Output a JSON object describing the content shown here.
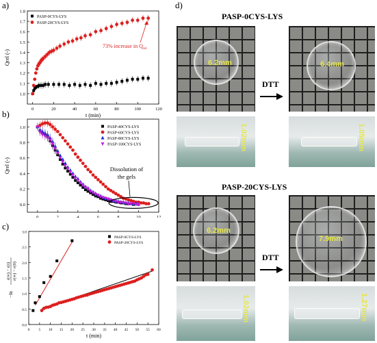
{
  "panel_letters": {
    "a": "a)",
    "b": "b)",
    "c": "c)",
    "d": "d)"
  },
  "chart_data": [
    {
      "id": "a",
      "type": "scatter",
      "xlabel": "t (min)",
      "ylabel": "Qrel (-)",
      "xlim": [
        -5,
        120
      ],
      "ylim": [
        0.9,
        1.8
      ],
      "xticks": [
        0,
        20,
        40,
        60,
        80,
        100,
        120
      ],
      "yticks": [
        1.0,
        1.1,
        1.2,
        1.3,
        1.4,
        1.5,
        1.6,
        1.7,
        1.8
      ],
      "annotation": "73% increase in Q",
      "annotation_sub": "rel",
      "legend": "top-left",
      "series": [
        {
          "name": "PASP-0CYS-LYS",
          "color": "#000000",
          "marker": "square",
          "x": [
            0,
            1,
            2,
            3,
            4,
            5,
            6,
            8,
            10,
            12,
            15,
            20,
            25,
            30,
            35,
            40,
            45,
            50,
            55,
            60,
            65,
            70,
            75,
            80,
            85,
            90,
            95,
            100,
            105,
            110
          ],
          "y": [
            1.0,
            1.03,
            1.05,
            1.06,
            1.07,
            1.07,
            1.08,
            1.08,
            1.08,
            1.09,
            1.09,
            1.09,
            1.09,
            1.09,
            1.08,
            1.09,
            1.08,
            1.09,
            1.08,
            1.1,
            1.09,
            1.1,
            1.1,
            1.11,
            1.12,
            1.13,
            1.14,
            1.14,
            1.15,
            1.15
          ]
        },
        {
          "name": "PASP-20CYS-LYS",
          "color": "#dd1f1f",
          "marker": "circle",
          "x": [
            0,
            1,
            2,
            3,
            4,
            5,
            6,
            7,
            8,
            9,
            10,
            12,
            14,
            16,
            18,
            20,
            23,
            26,
            30,
            34,
            38,
            42,
            46,
            50,
            55,
            60,
            65,
            70,
            75,
            80,
            85,
            90,
            95,
            100,
            105,
            110
          ],
          "y": [
            1.0,
            1.08,
            1.14,
            1.2,
            1.24,
            1.27,
            1.29,
            1.3,
            1.32,
            1.33,
            1.34,
            1.36,
            1.38,
            1.4,
            1.41,
            1.42,
            1.44,
            1.46,
            1.48,
            1.5,
            1.51,
            1.53,
            1.54,
            1.56,
            1.57,
            1.6,
            1.61,
            1.63,
            1.65,
            1.67,
            1.68,
            1.69,
            1.71,
            1.71,
            1.73,
            1.73
          ]
        }
      ]
    },
    {
      "id": "b",
      "type": "scatter",
      "xlabel": "",
      "ylabel": "Qrel (-)",
      "xlim": [
        -1,
        12
      ],
      "ylim": [
        -0.1,
        1.1
      ],
      "xticks": [
        0,
        2,
        4,
        6,
        8,
        10,
        12
      ],
      "yticks": [
        0.0,
        0.2,
        0.4,
        0.6,
        0.8,
        1.0
      ],
      "annotation": "Dissolution of the gels",
      "legend": "top-right",
      "series": [
        {
          "name": "PASP-40CYS-LYS",
          "color": "#000000",
          "marker": "square",
          "x": [
            0,
            0.25,
            0.5,
            0.75,
            1,
            1.25,
            1.5,
            1.75,
            2,
            2.25,
            2.5,
            2.75,
            3,
            3.25,
            3.5,
            3.75,
            4,
            4.25,
            4.5,
            4.75,
            5,
            5.25,
            5.5,
            5.75,
            6,
            6.25,
            6.5,
            6.75,
            7,
            7.25,
            7.5,
            7.75,
            8,
            8.25,
            8.5,
            8.75,
            9,
            9.25,
            9.5
          ],
          "y": [
            1.0,
            0.95,
            0.92,
            0.9,
            0.87,
            0.82,
            0.76,
            0.7,
            0.64,
            0.58,
            0.52,
            0.47,
            0.43,
            0.39,
            0.35,
            0.31,
            0.28,
            0.25,
            0.22,
            0.19,
            0.17,
            0.15,
            0.13,
            0.11,
            0.1,
            0.08,
            0.07,
            0.06,
            0.05,
            0.04,
            0.04,
            0.03,
            0.03,
            0.02,
            0.02,
            0.01,
            0.01,
            0.01,
            0.0
          ]
        },
        {
          "name": "PASP-60CYS-LYS",
          "color": "#dd1f1f",
          "marker": "circle",
          "x": [
            0,
            0.25,
            0.5,
            0.75,
            1,
            1.25,
            1.5,
            1.75,
            2,
            2.25,
            2.5,
            2.75,
            3,
            3.25,
            3.5,
            3.75,
            4,
            4.25,
            4.5,
            4.75,
            5,
            5.25,
            5.5,
            5.75,
            6,
            6.25,
            6.5,
            6.75,
            7,
            7.25,
            7.5,
            7.75,
            8,
            8.25,
            8.5,
            8.75,
            9,
            9.25,
            9.5,
            9.75,
            10,
            10.25,
            10.5,
            10.75,
            11
          ],
          "y": [
            1.0,
            1.02,
            1.04,
            1.05,
            1.05,
            1.03,
            1.0,
            0.97,
            0.94,
            0.9,
            0.86,
            0.82,
            0.78,
            0.74,
            0.7,
            0.65,
            0.61,
            0.57,
            0.53,
            0.49,
            0.45,
            0.42,
            0.38,
            0.35,
            0.32,
            0.29,
            0.26,
            0.23,
            0.2,
            0.18,
            0.16,
            0.14,
            0.12,
            0.1,
            0.08,
            0.07,
            0.06,
            0.05,
            0.04,
            0.03,
            0.03,
            0.02,
            0.02,
            0.01,
            0.01
          ]
        },
        {
          "name": "PASP-80CYS-LYS",
          "color": "#1c2bd8",
          "marker": "triangle",
          "x": [
            0,
            0.25,
            0.5,
            0.75,
            1,
            1.25,
            1.5,
            1.75,
            2,
            2.25,
            2.5,
            2.75,
            3,
            3.25,
            3.5,
            3.75,
            4,
            4.25,
            4.5,
            4.75,
            5,
            5.25,
            5.5,
            5.75,
            6,
            6.25,
            6.5,
            6.75,
            7,
            7.25,
            7.5,
            7.75,
            8,
            8.25,
            8.5,
            8.75,
            9,
            9.25,
            9.5,
            9.75,
            10
          ],
          "y": [
            1.0,
            0.96,
            0.94,
            0.92,
            0.9,
            0.86,
            0.81,
            0.75,
            0.69,
            0.63,
            0.58,
            0.53,
            0.48,
            0.44,
            0.4,
            0.36,
            0.33,
            0.29,
            0.26,
            0.23,
            0.21,
            0.18,
            0.16,
            0.14,
            0.12,
            0.11,
            0.09,
            0.08,
            0.07,
            0.06,
            0.05,
            0.04,
            0.04,
            0.03,
            0.03,
            0.02,
            0.02,
            0.01,
            0.01,
            0.01,
            0.0
          ]
        },
        {
          "name": "PASP-100CYS-LYS",
          "color": "#c21fd8",
          "marker": "triangle-down",
          "x": [
            0,
            0.25,
            0.5,
            0.75,
            1,
            1.25,
            1.5,
            1.75,
            2,
            2.25,
            2.5,
            2.75,
            3,
            3.25,
            3.5,
            3.75,
            4,
            4.25,
            4.5,
            4.75,
            5,
            5.25,
            5.5,
            5.75,
            6,
            6.25,
            6.5,
            6.75,
            7,
            7.25,
            7.5,
            7.75,
            8,
            8.25,
            8.5,
            8.75,
            9,
            9.25,
            9.5,
            9.75,
            10
          ],
          "y": [
            1.0,
            0.93,
            0.9,
            0.88,
            0.86,
            0.83,
            0.78,
            0.72,
            0.66,
            0.6,
            0.55,
            0.5,
            0.46,
            0.42,
            0.38,
            0.34,
            0.31,
            0.28,
            0.25,
            0.22,
            0.2,
            0.17,
            0.15,
            0.13,
            0.12,
            0.1,
            0.09,
            0.08,
            0.07,
            0.06,
            0.05,
            0.04,
            0.03,
            0.03,
            0.02,
            0.02,
            0.01,
            0.01,
            0.01,
            0.0,
            0.0
          ]
        }
      ]
    },
    {
      "id": "c",
      "type": "scatter",
      "xlabel": "t (min)",
      "ylabel_prefix": "−ln",
      "ylabel_num": "r(∞) − r(t)",
      "ylabel_den": "r(∞) − r(0)",
      "xlim": [
        0,
        60
      ],
      "ylim": [
        0,
        3.0
      ],
      "xticks": [
        0,
        5,
        10,
        15,
        20,
        25,
        30,
        35,
        40,
        45,
        50,
        55,
        60
      ],
      "yticks": [
        0.0,
        0.5,
        1.0,
        1.5,
        2.0,
        2.5,
        3.0
      ],
      "legend": "top-right",
      "series": [
        {
          "name": "PASP-0CYS-LYS",
          "color": "#000000",
          "marker": "square",
          "x": [
            2,
            3,
            5,
            7,
            10,
            13,
            20
          ],
          "y": [
            0.45,
            0.7,
            0.9,
            1.35,
            1.55,
            2.05,
            2.7
          ],
          "fit": [
            [
              3,
              0.62
            ],
            [
              20.5,
              2.72
            ]
          ]
        },
        {
          "name": "PASP-20CYS-LYS",
          "color": "#dd1f1f",
          "marker": "circle",
          "x": [
            6,
            7,
            8,
            9,
            10,
            11,
            12,
            13,
            14,
            15,
            16,
            17,
            18,
            19,
            20,
            21,
            22,
            23,
            24,
            25,
            26,
            27,
            28,
            29,
            30,
            31,
            32,
            33,
            34,
            35,
            36,
            37,
            38,
            39,
            40,
            41,
            42,
            43,
            44,
            45,
            46,
            47,
            48,
            49,
            50,
            51,
            52,
            53,
            54,
            55,
            57
          ],
          "y": [
            0.45,
            0.52,
            0.55,
            0.56,
            0.58,
            0.62,
            0.64,
            0.66,
            0.7,
            0.71,
            0.73,
            0.75,
            0.77,
            0.79,
            0.81,
            0.83,
            0.86,
            0.88,
            0.9,
            0.92,
            0.94,
            0.95,
            0.98,
            1.0,
            1.02,
            1.04,
            1.06,
            1.08,
            1.1,
            1.12,
            1.14,
            1.16,
            1.18,
            1.2,
            1.22,
            1.24,
            1.26,
            1.28,
            1.3,
            1.32,
            1.34,
            1.36,
            1.38,
            1.4,
            1.44,
            1.47,
            1.5,
            1.55,
            1.6,
            1.62,
            1.76
          ],
          "fit": [
            [
              6,
              0.5
            ],
            [
              57,
              1.72
            ]
          ]
        }
      ]
    }
  ],
  "photos": {
    "title_top": "PASP-0CYS-LYS",
    "title_bottom": "PASP-20CYS-LYS",
    "dtt_top": "DTT",
    "dtt_bottom": "DTT",
    "top_left_diameter": "6.2mm",
    "top_right_diameter": "6.4mm",
    "top_left_height": "1.02mm",
    "top_right_height": "1.05mm",
    "bottom_left_diameter": "6.2mm",
    "bottom_right_diameter": "7.9mm",
    "bottom_left_height": "1.02mm",
    "bottom_right_height": "1.27mm"
  }
}
